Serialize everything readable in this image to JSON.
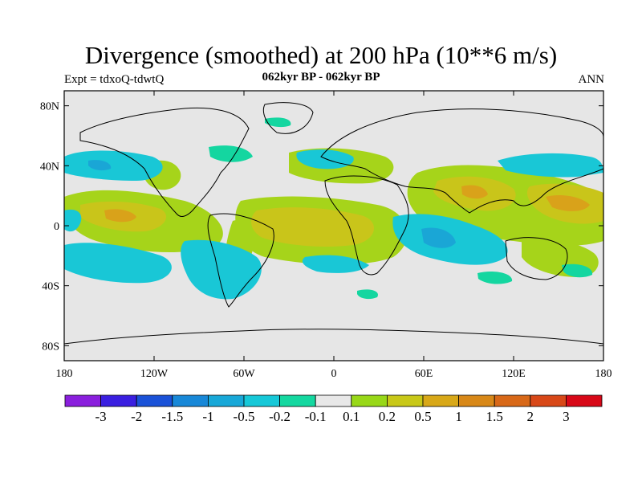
{
  "title": "Divergence (smoothed) at 200 hPa (10**6 m/s)",
  "subtitle_left": "Expt = tdxoQ-tdwtQ",
  "subtitle_center": "062kyr BP - 062kyr BP",
  "subtitle_right": "ANN",
  "lat_ticks": [
    "80N",
    "40N",
    "0",
    "40S",
    "80S"
  ],
  "lon_ticks": [
    "180",
    "120W",
    "60W",
    "0",
    "60E",
    "120E",
    "180"
  ],
  "colorbar": {
    "colors": [
      "#8a1fdd",
      "#3a1fe0",
      "#1a52d8",
      "#1888d8",
      "#18a8d8",
      "#16c8d8",
      "#14d8a0",
      "#e8e8e8",
      "#98d818",
      "#c8c818",
      "#d8a818",
      "#d88818",
      "#d86818",
      "#d84818",
      "#d80818"
    ],
    "labels": [
      "-3",
      "-2",
      "-1.5",
      "-1",
      "-0.5",
      "-0.2",
      "-0.1",
      "0.1",
      "0.2",
      "0.5",
      "1",
      "1.5",
      "2",
      "3"
    ]
  }
}
